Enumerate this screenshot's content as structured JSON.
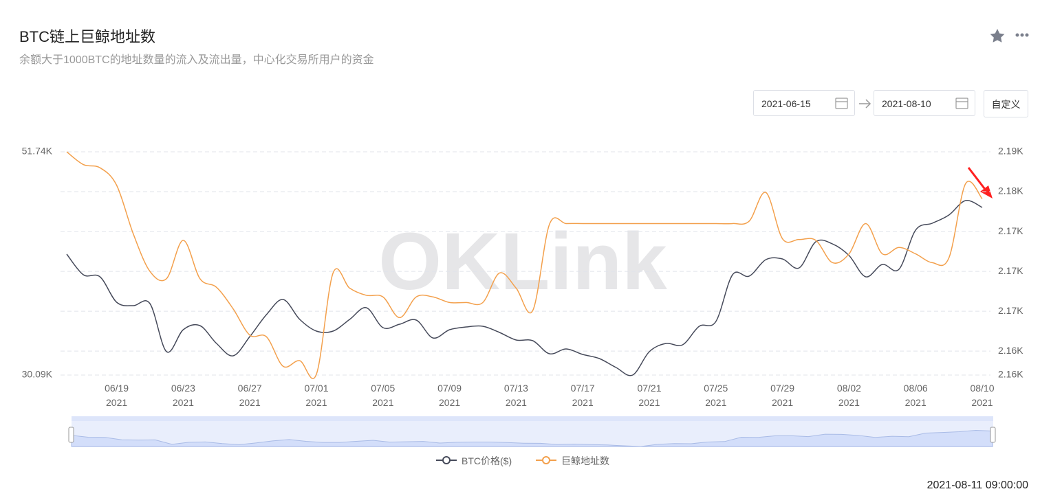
{
  "header": {
    "title": "BTC链上巨鲸地址数",
    "subtitle": "余额大于1000BTC的地址数量的流入及流出量，中心化交易所用户的资金"
  },
  "controls": {
    "start_date": "2021-06-15",
    "end_date": "2021-08-10",
    "custom_button": "自定义"
  },
  "footer": {
    "timestamp": "2021-08-11 09:00:00"
  },
  "chart_data": {
    "type": "line",
    "watermark": "OKLink",
    "x": [
      "2021-06-16",
      "2021-06-17",
      "2021-06-18",
      "2021-06-19",
      "2021-06-20",
      "2021-06-21",
      "2021-06-22",
      "2021-06-23",
      "2021-06-24",
      "2021-06-25",
      "2021-06-26",
      "2021-06-27",
      "2021-06-28",
      "2021-06-29",
      "2021-06-30",
      "2021-07-01",
      "2021-07-02",
      "2021-07-03",
      "2021-07-04",
      "2021-07-05",
      "2021-07-06",
      "2021-07-07",
      "2021-07-08",
      "2021-07-09",
      "2021-07-10",
      "2021-07-11",
      "2021-07-12",
      "2021-07-13",
      "2021-07-14",
      "2021-07-15",
      "2021-07-16",
      "2021-07-17",
      "2021-07-18",
      "2021-07-19",
      "2021-07-20",
      "2021-07-21",
      "2021-07-22",
      "2021-07-23",
      "2021-07-24",
      "2021-07-25",
      "2021-07-26",
      "2021-07-27",
      "2021-07-28",
      "2021-07-29",
      "2021-07-30",
      "2021-07-31",
      "2021-08-01",
      "2021-08-02",
      "2021-08-03",
      "2021-08-04",
      "2021-08-05",
      "2021-08-06",
      "2021-08-07",
      "2021-08-08",
      "2021-08-09",
      "2021-08-10"
    ],
    "xticks": [
      {
        "value": "2021-06-19",
        "label": "06/19\n2021"
      },
      {
        "value": "2021-06-23",
        "label": "06/23\n2021"
      },
      {
        "value": "2021-06-27",
        "label": "06/27\n2021"
      },
      {
        "value": "2021-07-01",
        "label": "07/01\n2021"
      },
      {
        "value": "2021-07-05",
        "label": "07/05\n2021"
      },
      {
        "value": "2021-07-09",
        "label": "07/09\n2021"
      },
      {
        "value": "2021-07-13",
        "label": "07/13\n2021"
      },
      {
        "value": "2021-07-17",
        "label": "07/17\n2021"
      },
      {
        "value": "2021-07-21",
        "label": "07/21\n2021"
      },
      {
        "value": "2021-07-25",
        "label": "07/25\n2021"
      },
      {
        "value": "2021-07-29",
        "label": "07/29\n2021"
      },
      {
        "value": "2021-08-02",
        "label": "08/02\n2021"
      },
      {
        "value": "2021-08-06",
        "label": "08/06\n2021"
      },
      {
        "value": "2021-08-10",
        "label": "08/10\n2021"
      }
    ],
    "ylim": [
      30090,
      51740
    ],
    "yticks": [
      {
        "value": 51740,
        "label": "51.74K"
      },
      {
        "value": 30090,
        "label": "30.09K"
      }
    ],
    "y2lim": [
      2159.5,
      2187.5
    ],
    "y2ticks": [
      {
        "value": 2187.5,
        "label": "2.19K"
      },
      {
        "value": 2182.5,
        "label": "2.18K"
      },
      {
        "value": 2177.5,
        "label": "2.17K"
      },
      {
        "value": 2172.5,
        "label": "2.17K"
      },
      {
        "value": 2167.5,
        "label": "2.17K"
      },
      {
        "value": 2162.5,
        "label": "2.16K"
      },
      {
        "value": 2159.5,
        "label": "2.16K"
      }
    ],
    "grid": true,
    "smooth": true,
    "legend": "bottom",
    "series": [
      {
        "name": "BTC价格($)",
        "color": "#464a5a",
        "axis": "y",
        "values": [
          41814,
          39816,
          39616,
          37151,
          36818,
          37018,
          32355,
          34487,
          34886,
          33154,
          31955,
          33820,
          35952,
          37418,
          35486,
          34353,
          34353,
          35486,
          36618,
          34686,
          35020,
          35419,
          33687,
          34487,
          34753,
          34820,
          34220,
          33487,
          33421,
          32155,
          32621,
          32088,
          31689,
          30823,
          30090,
          32355,
          33154,
          33021,
          34820,
          35286,
          39816,
          39683,
          41281,
          41348,
          40482,
          43013,
          42813,
          41681,
          39616,
          40815,
          40349,
          44146,
          44812,
          45611,
          47010,
          46344
        ]
      },
      {
        "name": "巨鲸地址数",
        "color": "#f3a04c",
        "axis": "y2",
        "values": [
          2187.5,
          2185.9,
          2185.5,
          2183.3,
          2177.2,
          2172.5,
          2171.6,
          2176.4,
          2171.6,
          2170.5,
          2167.8,
          2164.5,
          2164.3,
          2160.6,
          2161.3,
          2159.6,
          2172.3,
          2170.4,
          2169.5,
          2169.3,
          2166.7,
          2169.3,
          2169.3,
          2168.6,
          2168.6,
          2168.6,
          2172.3,
          2170.4,
          2167.6,
          2178.4,
          2178.5,
          2178.5,
          2178.5,
          2178.5,
          2178.5,
          2178.5,
          2178.5,
          2178.5,
          2178.5,
          2178.5,
          2178.5,
          2178.8,
          2182.4,
          2176.6,
          2176.5,
          2176.4,
          2173.6,
          2174.7,
          2178.5,
          2174.7,
          2175.5,
          2174.7,
          2173.6,
          2174.2,
          2183.5,
          2181.6
        ]
      }
    ]
  }
}
